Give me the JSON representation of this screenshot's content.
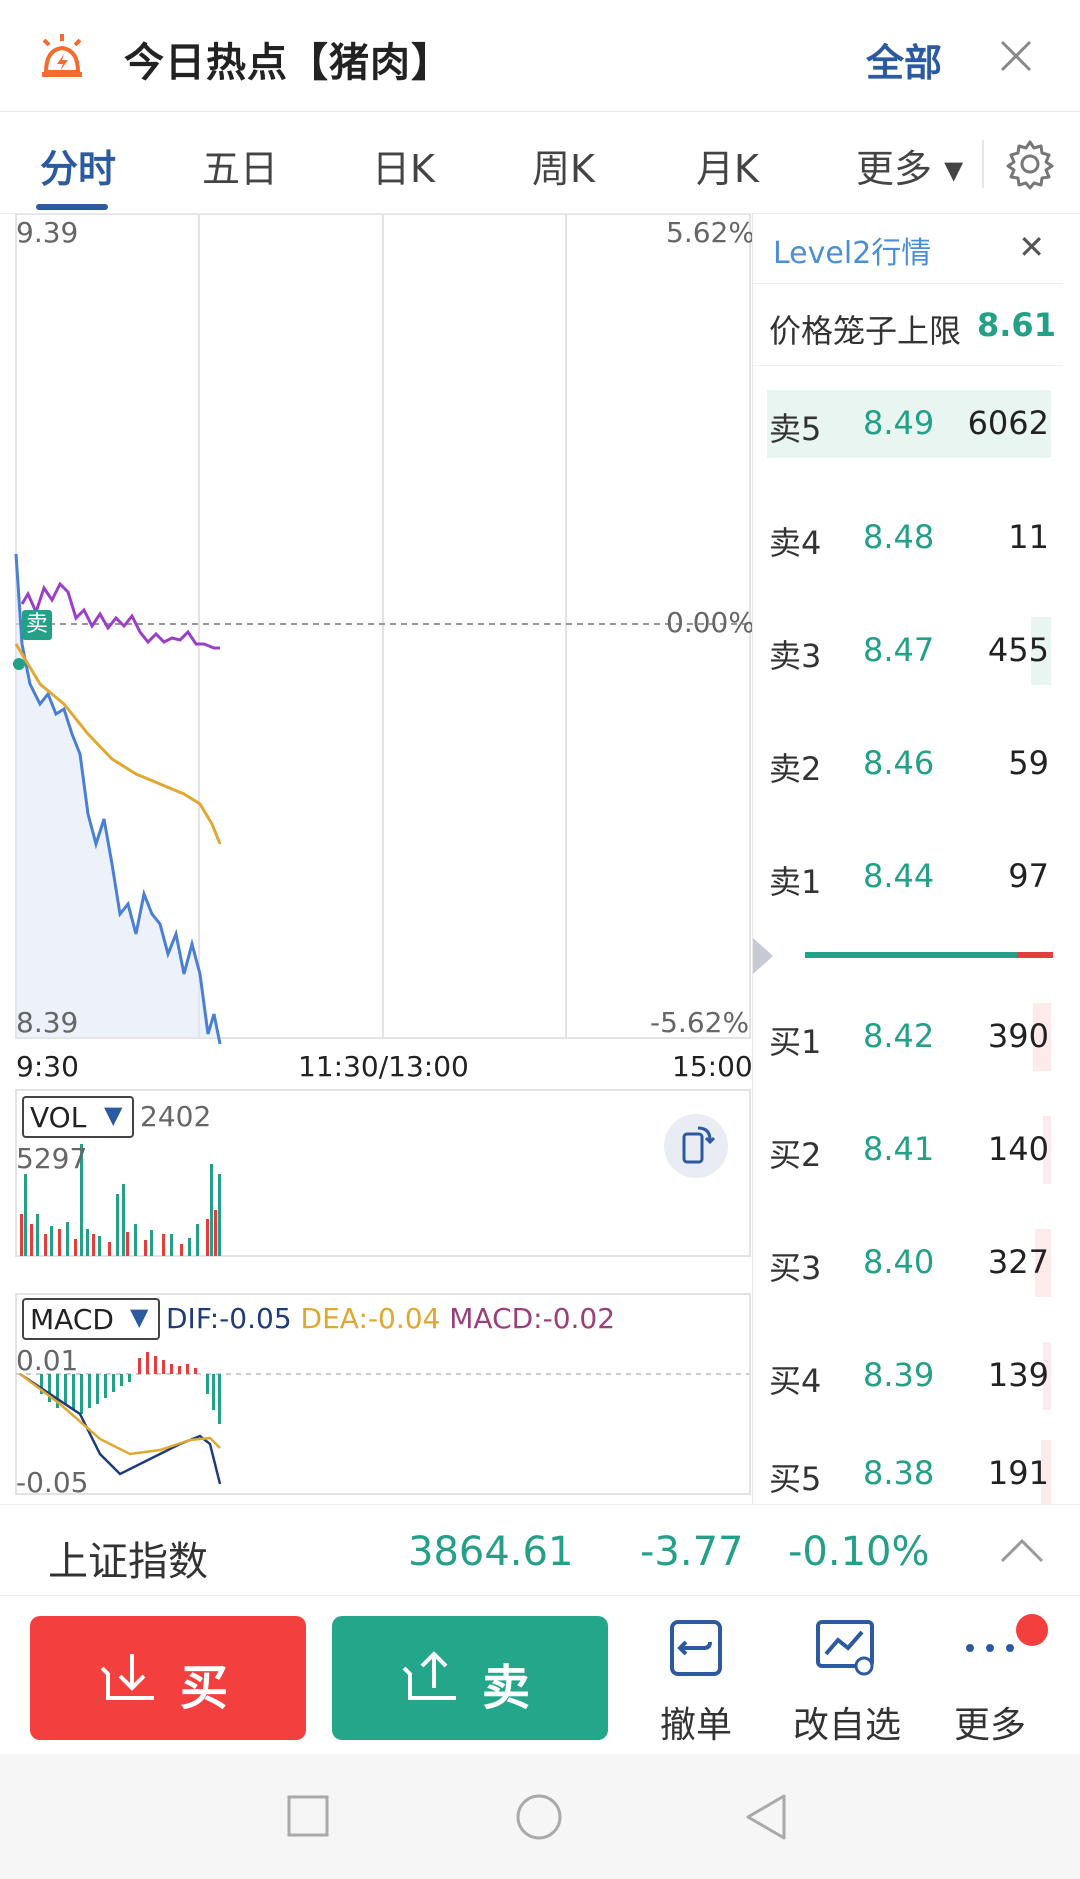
{
  "header": {
    "title": "今日热点【猪肉】",
    "all_label": "全部",
    "icons": {
      "alarm": "alarm-icon",
      "close": "close-icon"
    }
  },
  "tabs": [
    {
      "label": "分时",
      "active": true
    },
    {
      "label": "五日"
    },
    {
      "label": "日K"
    },
    {
      "label": "周K"
    },
    {
      "label": "月K"
    },
    {
      "label": "更多 ▾"
    }
  ],
  "main_chart": {
    "price_high": "9.39",
    "price_low": "8.39",
    "pct_high": "5.62%",
    "pct_zero": "0.00%",
    "pct_low": "-5.62%",
    "time_start": "9:30",
    "time_mid": "11:30/13:00",
    "time_end": "15:00",
    "sell_marker": "卖"
  },
  "vol_panel": {
    "selector": "VOL",
    "value": "2402",
    "axis_max": "5297"
  },
  "macd_panel": {
    "selector": "MACD",
    "dif": "DIF:-0.05",
    "dea": "DEA:-0.04",
    "macd": "MACD:-0.02",
    "axis_max": "0.01",
    "axis_min": "-0.05"
  },
  "level2": {
    "title": "Level2行情",
    "cage_label": "价格笼子上限",
    "cage_value": "8.61",
    "asks": [
      {
        "name": "卖5",
        "price": "8.49",
        "qty": "6062"
      },
      {
        "name": "卖4",
        "price": "8.48",
        "qty": "11"
      },
      {
        "name": "卖3",
        "price": "8.47",
        "qty": "455"
      },
      {
        "name": "卖2",
        "price": "8.46",
        "qty": "59"
      },
      {
        "name": "卖1",
        "price": "8.44",
        "qty": "97"
      }
    ],
    "bids": [
      {
        "name": "买1",
        "price": "8.42",
        "qty": "390"
      },
      {
        "name": "买2",
        "price": "8.41",
        "qty": "140"
      },
      {
        "name": "买3",
        "price": "8.40",
        "qty": "327"
      },
      {
        "name": "买4",
        "price": "8.39",
        "qty": "139"
      },
      {
        "name": "买5",
        "price": "8.38",
        "qty": "191"
      }
    ]
  },
  "index_bar": {
    "name": "上证指数",
    "value": "3864.61",
    "change": "-3.77",
    "pct": "-0.10%"
  },
  "actions": {
    "buy": "买",
    "sell": "卖",
    "cancel": "撤单",
    "watchlist": "改自选",
    "more": "更多"
  },
  "colors": {
    "accent": "#2c5aa0",
    "up_red": "#f43f3f",
    "down_green": "#23a087",
    "price_line": "#4a7fd6",
    "avg_line": "#e0a830",
    "index_line": "#9b3fc9"
  }
}
